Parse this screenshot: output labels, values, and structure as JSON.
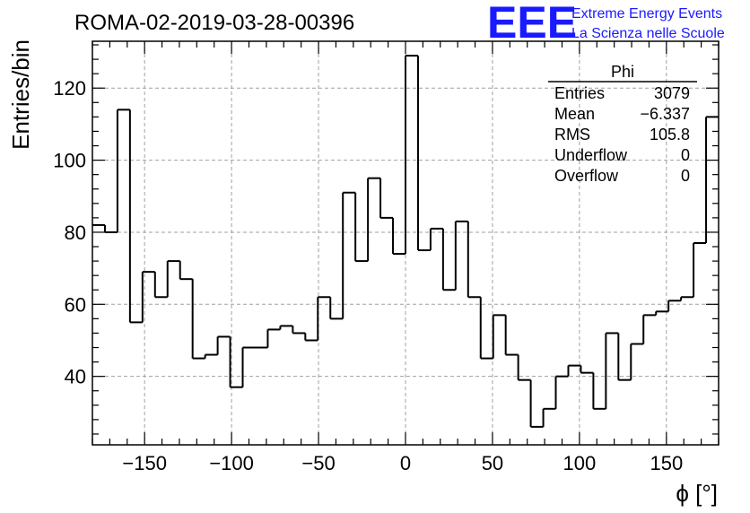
{
  "chart_data": {
    "type": "histogram",
    "title": "ROMA-02-2019-03-28-00396",
    "xlabel": "ϕ [°]",
    "ylabel": "Entries/bin",
    "xlim": [
      -180,
      180
    ],
    "ylim": [
      21,
      133
    ],
    "grid": true,
    "x_ticks": [
      -150,
      -100,
      -50,
      0,
      50,
      100,
      150
    ],
    "y_ticks": [
      40,
      60,
      80,
      100,
      120
    ],
    "bin_edges_start": -180,
    "bin_width": 7.2,
    "values": [
      82,
      80,
      114,
      55,
      69,
      62,
      72,
      67,
      45,
      46,
      51,
      37,
      48,
      48,
      53,
      54,
      52,
      50,
      62,
      56,
      91,
      72,
      95,
      84,
      74,
      129,
      75,
      81,
      64,
      83,
      62,
      45,
      57,
      46,
      39,
      26,
      31,
      40,
      43,
      41,
      31,
      52,
      39,
      49,
      57,
      58,
      61,
      62,
      77,
      112
    ],
    "stats_box": {
      "title": "Phi",
      "rows": [
        {
          "label": "Entries",
          "value": "3079"
        },
        {
          "label": "Mean",
          "value": "−6.337"
        },
        {
          "label": "RMS",
          "value": "105.8"
        },
        {
          "label": "Underflow",
          "value": "0"
        },
        {
          "label": "Overflow",
          "value": "0"
        }
      ]
    }
  },
  "logo": {
    "mark": "EEE",
    "line1": "Extreme Energy Events",
    "line2": "La Scienza nelle Scuole",
    "color": "#1a1aff"
  }
}
